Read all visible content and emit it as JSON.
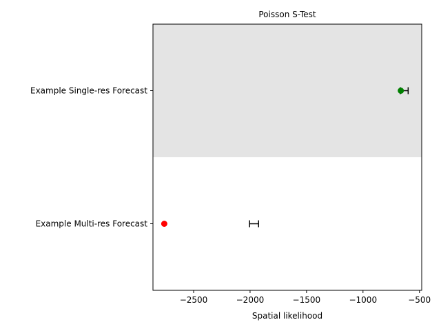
{
  "chart_data": {
    "type": "scatter",
    "title": "Poisson S-Test",
    "xlabel": "Spatial likelihood",
    "ylabel": "",
    "xlim": [
      -2860,
      -480
    ],
    "xticks": [
      -2500,
      -2000,
      -1500,
      -1000,
      -500
    ],
    "xtick_labels": [
      "−2500",
      "−2000",
      "−1500",
      "−1000",
      "−500"
    ],
    "grid": false,
    "rows": [
      {
        "label": "Example Single-res Forecast",
        "observed": -665,
        "interval": [
          -670,
          -600
        ],
        "marker_color": "#008000",
        "shaded": true
      },
      {
        "label": "Example Multi-res Forecast",
        "observed": -2760,
        "interval": [
          -2005,
          -1925
        ],
        "marker_color": "#ff0000",
        "shaded": false
      }
    ],
    "shade_color": "#e4e4e4"
  }
}
